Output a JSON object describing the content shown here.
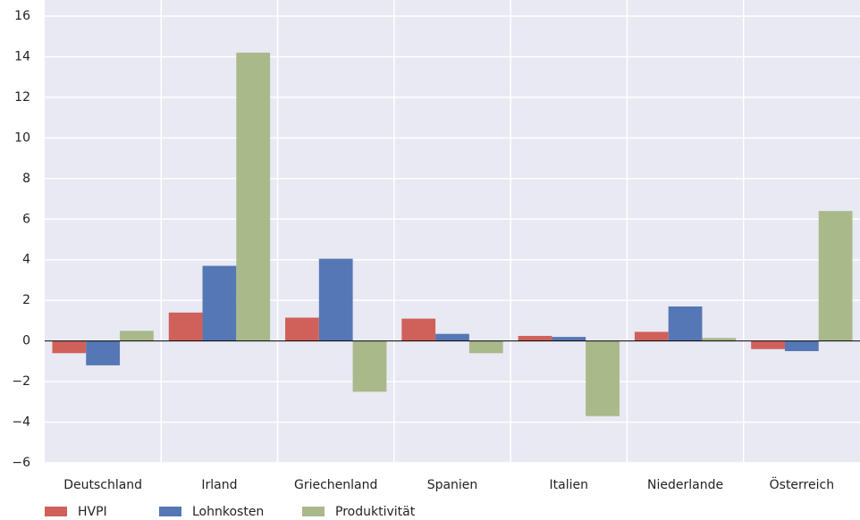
{
  "chart_data": {
    "type": "bar",
    "categories": [
      "Deutschland",
      "Irland",
      "Griechenland",
      "Spanien",
      "Italien",
      "Niederlande",
      "Österreich"
    ],
    "series": [
      {
        "name": "HVPI",
        "color": "#d0615a",
        "values": [
          -0.6,
          1.4,
          1.15,
          1.1,
          0.25,
          0.45,
          -0.4
        ]
      },
      {
        "name": "Lohnkosten",
        "color": "#5577b5",
        "values": [
          -1.2,
          3.7,
          4.05,
          0.35,
          0.2,
          1.7,
          -0.5
        ]
      },
      {
        "name": "Produktivität",
        "color": "#a9b98a",
        "values": [
          0.5,
          14.2,
          -2.5,
          -0.6,
          -3.7,
          0.15,
          6.4
        ]
      }
    ],
    "ylim": [
      -6,
      16
    ],
    "yticks": [
      {
        "value": -6,
        "label": "−6"
      },
      {
        "value": -4,
        "label": "−4"
      },
      {
        "value": -2,
        "label": "−2"
      },
      0,
      2,
      4,
      6,
      8,
      10,
      12,
      14,
      16
    ],
    "grid": true
  }
}
